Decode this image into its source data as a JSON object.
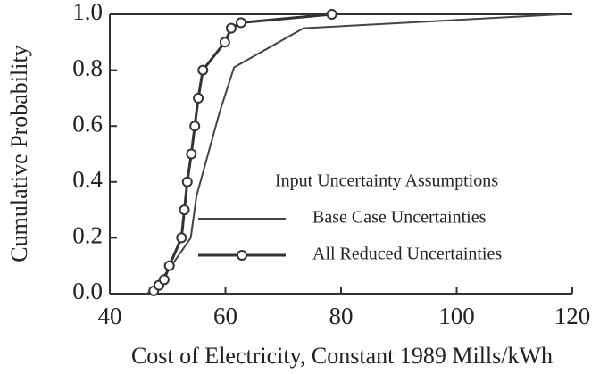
{
  "chart_data": {
    "type": "line",
    "xlabel": "Cost of Electricity, Constant 1989 Mills/kWh",
    "ylabel": "Cumulative Probability",
    "legend_title": "Input Uncertainty Assumptions",
    "xlim": [
      40,
      120
    ],
    "xticks": [
      40,
      60,
      80,
      100,
      120
    ],
    "ylim": [
      0,
      1
    ],
    "yticks": [
      {
        "value": 0,
        "label": "0.0"
      },
      {
        "value": 0.2,
        "label": "0.2"
      },
      {
        "value": 0.4,
        "label": "0.4"
      },
      {
        "value": 0.6,
        "label": "0.6"
      },
      {
        "value": 0.8,
        "label": "0.8"
      },
      {
        "value": 1,
        "label": "1.0"
      }
    ],
    "series": [
      {
        "name": "Base Case Uncertainties",
        "color": "#444",
        "marker": false,
        "x": [
          46.5,
          50,
          54,
          55,
          57,
          59,
          61.5,
          73.5,
          118
        ],
        "values": [
          0,
          0.08,
          0.2,
          0.35,
          0.5,
          0.65,
          0.81,
          0.95,
          1.0
        ]
      },
      {
        "name": "All Reduced Uncertainties",
        "color": "#333",
        "marker": true,
        "x": [
          47.6,
          48.5,
          49.4,
          50.3,
          52.4,
          52.9,
          53.4,
          54.1,
          54.7,
          55.3,
          56.1,
          59.9,
          61,
          62.7,
          78.4
        ],
        "values": [
          0.01,
          0.03,
          0.05,
          0.1,
          0.2,
          0.3,
          0.4,
          0.5,
          0.6,
          0.7,
          0.8,
          0.9,
          0.95,
          0.97,
          1.0
        ]
      }
    ]
  }
}
